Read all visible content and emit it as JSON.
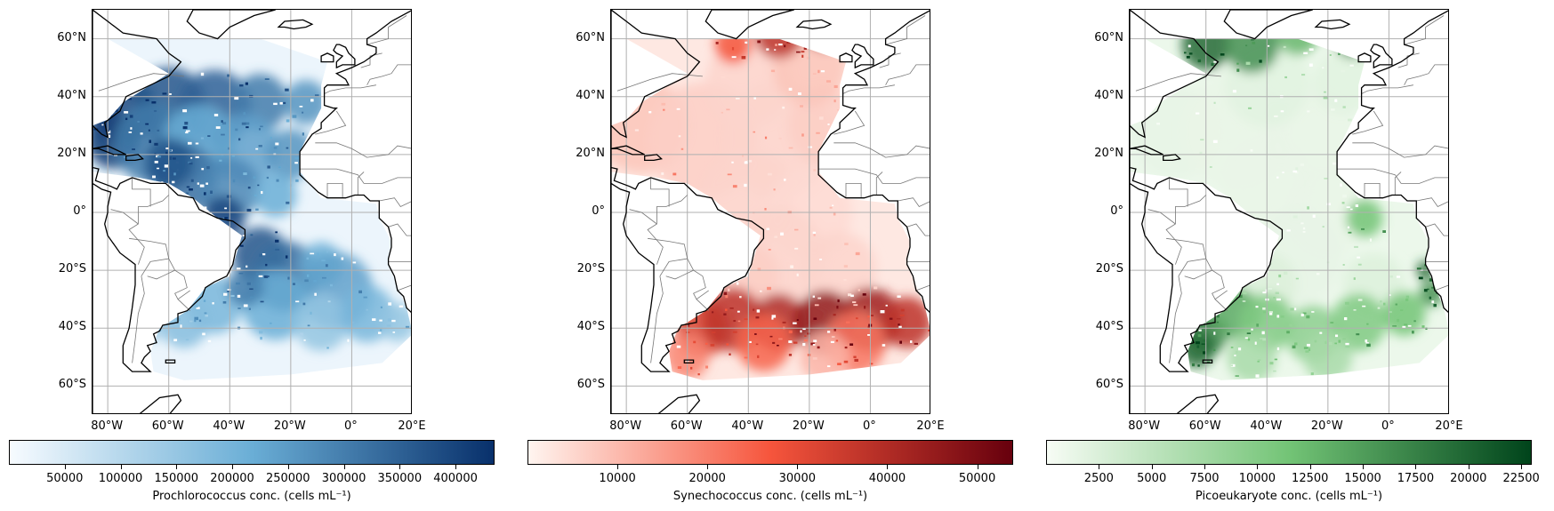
{
  "lat_ticks": [
    "60°N",
    "40°N",
    "20°N",
    "0°",
    "20°S",
    "40°S",
    "60°S"
  ],
  "lon_ticks": [
    "80°W",
    "60°W",
    "40°W",
    "20°W",
    "0°",
    "20°E"
  ],
  "panels": [
    {
      "id": "prochlorococcus",
      "colormap": "Blues",
      "colors": {
        "low": "#f7fbff",
        "mid": "#6aaed6",
        "high": "#08306b"
      },
      "colorbar": {
        "label": "Prochlorococcus conc. (cells mL⁻¹)",
        "ticks": [
          "50000",
          "100000",
          "150000",
          "200000",
          "250000",
          "300000",
          "350000",
          "400000"
        ],
        "tick_values": [
          50000,
          100000,
          150000,
          200000,
          250000,
          300000,
          350000,
          400000
        ],
        "range": [
          0,
          435000
        ]
      }
    },
    {
      "id": "synechococcus",
      "colormap": "Reds",
      "colors": {
        "low": "#fff5f0",
        "mid": "#f6553c",
        "high": "#67000d"
      },
      "colorbar": {
        "label": "Synechococcus conc. (cells mL⁻¹)",
        "ticks": [
          "10000",
          "20000",
          "30000",
          "40000",
          "50000"
        ],
        "tick_values": [
          10000,
          20000,
          30000,
          40000,
          50000
        ],
        "range": [
          0,
          54000
        ]
      }
    },
    {
      "id": "picoeukaryote",
      "colormap": "Greens",
      "colors": {
        "low": "#f7fcf5",
        "mid": "#73c476",
        "high": "#00441b"
      },
      "colorbar": {
        "label": "Picoeukaryote conc. (cells mL⁻¹)",
        "ticks": [
          "2500",
          "5000",
          "7500",
          "10000",
          "12500",
          "15000",
          "17500",
          "20000",
          "22500"
        ],
        "tick_values": [
          2500,
          5000,
          7500,
          10000,
          12500,
          15000,
          17500,
          20000,
          22500
        ],
        "range": [
          0,
          23000
        ]
      }
    }
  ]
}
